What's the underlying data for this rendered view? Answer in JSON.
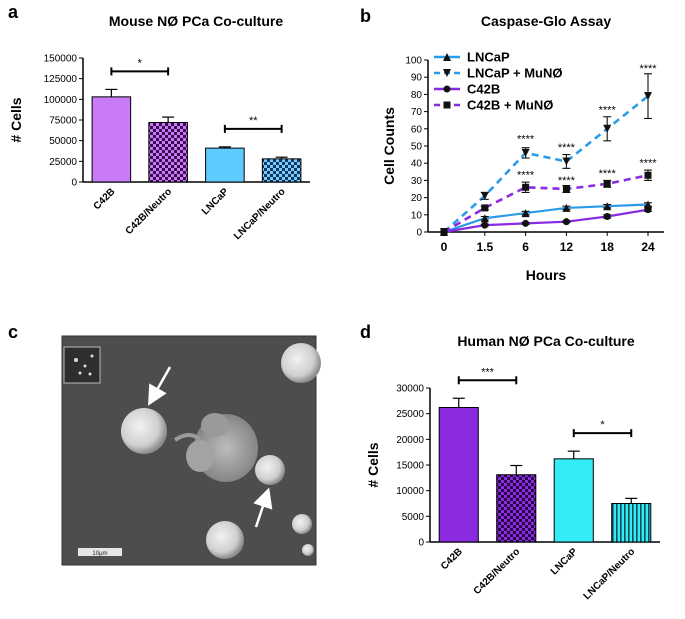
{
  "panel_labels": {
    "a": "a",
    "b": "b",
    "c": "c",
    "d": "d"
  },
  "colors": {
    "violet": "#c97bf5",
    "purple": "#8a2be2",
    "sky": "#5ecbff",
    "lightblue": "#7ec8ff",
    "blue": "#2a9be8",
    "cyan": "#33ecf7",
    "dark_purple": "#4a0a6b"
  },
  "chart_data": [
    {
      "id": "a",
      "type": "bar",
      "title": "Mouse NØ PCa Co-culture",
      "ylabel": "# Cells",
      "categories": [
        "C42B",
        "C42B/Neutro",
        "LNCaP",
        "LNCaP/Neutro"
      ],
      "values": [
        103000,
        72000,
        41000,
        28000
      ],
      "errors": [
        9000,
        6500,
        1500,
        2000
      ],
      "ylim": [
        0,
        150000
      ],
      "yticks": [
        "0",
        "25000",
        "50000",
        "75000",
        "100000",
        "125000",
        "150000"
      ],
      "fills": [
        "solid",
        "checker",
        "solid",
        "checker"
      ],
      "significance": [
        {
          "label": "*",
          "from": "C42B",
          "to": "C42B/Neutro"
        },
        {
          "label": "**",
          "from": "LNCaP",
          "to": "LNCaP/Neutro"
        }
      ]
    },
    {
      "id": "b",
      "type": "line",
      "title": "Caspase-Glo Assay",
      "xlabel": "Hours",
      "ylabel": "Cell Counts",
      "x": [
        "0",
        "1.5",
        "6",
        "12",
        "18",
        "24"
      ],
      "ylim": [
        0,
        100
      ],
      "yticks": [
        "0",
        "10",
        "20",
        "30",
        "40",
        "50",
        "60",
        "70",
        "80",
        "90",
        "100"
      ],
      "grid": false,
      "legend_position": "top-left",
      "series": [
        {
          "name": "LNCaP",
          "marker": "triangle-up",
          "dashed": false,
          "values": [
            0,
            8,
            11,
            14,
            15,
            16
          ],
          "errors": [
            0,
            1,
            1,
            1,
            1,
            1
          ]
        },
        {
          "name": "LNCaP + MuNØ",
          "marker": "triangle-down",
          "dashed": true,
          "values": [
            0,
            21,
            46,
            41,
            60,
            79
          ],
          "errors": [
            0,
            2,
            3,
            4,
            7,
            13
          ]
        },
        {
          "name": "C42B",
          "marker": "circle",
          "dashed": false,
          "values": [
            0,
            4,
            5,
            6,
            9,
            13
          ],
          "errors": [
            0,
            0.5,
            0.5,
            0.5,
            1,
            1
          ]
        },
        {
          "name": "C42B + MuNØ",
          "marker": "square",
          "dashed": true,
          "values": [
            0,
            14,
            26,
            25,
            28,
            33
          ],
          "errors": [
            0,
            1,
            3,
            2,
            2,
            3
          ]
        }
      ],
      "annotations": [
        {
          "x": "6",
          "y": 52,
          "text": "****"
        },
        {
          "x": "12",
          "y": 47,
          "text": "****"
        },
        {
          "x": "18",
          "y": 69,
          "text": "****"
        },
        {
          "x": "24",
          "y": 93,
          "text": "****"
        },
        {
          "x": "6",
          "y": 31,
          "text": "****"
        },
        {
          "x": "12",
          "y": 28,
          "text": "****"
        },
        {
          "x": "18",
          "y": 32,
          "text": "****"
        },
        {
          "x": "24",
          "y": 38,
          "text": "****"
        }
      ]
    },
    {
      "id": "d",
      "type": "bar",
      "title": "Human NØ PCa Co-culture",
      "ylabel": "# Cells",
      "categories": [
        "C42B",
        "C42B/Neutro",
        "LNCaP",
        "LNCaP/Neutro"
      ],
      "values": [
        26200,
        13100,
        16200,
        7500
      ],
      "errors": [
        1800,
        1800,
        1500,
        1000
      ],
      "ylim": [
        0,
        30000
      ],
      "yticks": [
        "0",
        "5000",
        "10000",
        "15000",
        "20000",
        "25000",
        "30000"
      ],
      "fills": [
        "solid",
        "checker",
        "solid",
        "stripes"
      ],
      "significance": [
        {
          "label": "***",
          "from": "C42B",
          "to": "C42B/Neutro"
        },
        {
          "label": "*",
          "from": "LNCaP",
          "to": "LNCaP/Neutro"
        }
      ]
    }
  ],
  "micrograph": {
    "scale_bar": "10μm"
  }
}
